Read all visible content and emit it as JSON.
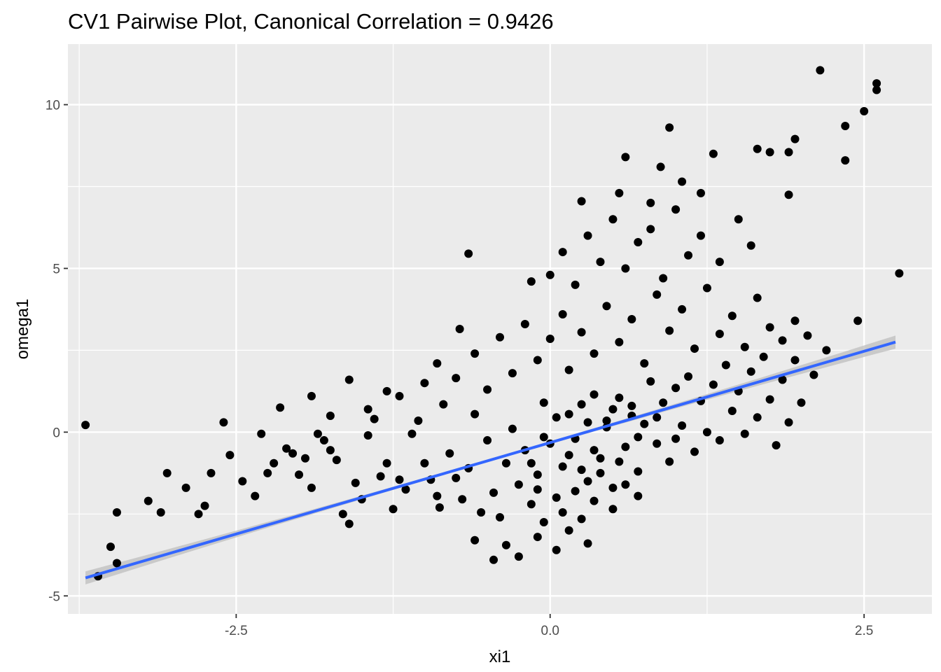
{
  "chart_data": {
    "type": "scatter",
    "title": "CV1 Pairwise Plot, Canonical Correlation = 0.9426",
    "xlabel": "xi1",
    "ylabel": "omega1",
    "xlim": [
      -3.84,
      3.04
    ],
    "ylim": [
      -5.55,
      11.85
    ],
    "x_ticks": [
      -2.5,
      0.0,
      2.5
    ],
    "x_tick_labels": [
      "-2.5",
      "0.0",
      "2.5"
    ],
    "y_ticks": [
      -5,
      0,
      5,
      10
    ],
    "y_tick_labels": [
      "-5",
      "0",
      "5",
      "10"
    ],
    "grid": true,
    "point_color": "#000000",
    "panel_background": "#EBEBEB",
    "regression_line": {
      "method": "linear",
      "color": "#3366FF",
      "x": [
        -3.7,
        2.75
      ],
      "y": [
        -4.45,
        2.75
      ],
      "se_band_color": "#BEBEBE",
      "se_halfwidth_ends": 0.2,
      "se_halfwidth_center": 0.04
    },
    "points": [
      [
        -3.7,
        0.22
      ],
      [
        -3.6,
        -4.4
      ],
      [
        -3.45,
        -2.45
      ],
      [
        -3.45,
        -4.0
      ],
      [
        -3.5,
        -3.5
      ],
      [
        -3.2,
        -2.1
      ],
      [
        -3.1,
        -2.45
      ],
      [
        -3.05,
        -1.25
      ],
      [
        -2.9,
        -1.7
      ],
      [
        -2.8,
        -2.5
      ],
      [
        -2.75,
        -2.25
      ],
      [
        -2.7,
        -1.25
      ],
      [
        -2.55,
        -0.7
      ],
      [
        -2.45,
        -1.5
      ],
      [
        -2.35,
        -1.95
      ],
      [
        -2.25,
        -1.25
      ],
      [
        -2.2,
        -0.95
      ],
      [
        -2.15,
        0.75
      ],
      [
        -2.1,
        -0.5
      ],
      [
        -2.05,
        -0.65
      ],
      [
        -2.0,
        -1.3
      ],
      [
        -1.95,
        -0.8
      ],
      [
        -1.9,
        -1.7
      ],
      [
        -1.8,
        -0.25
      ],
      [
        -1.75,
        -0.55
      ],
      [
        -1.7,
        -0.85
      ],
      [
        -1.65,
        -2.5
      ],
      [
        -1.6,
        -2.8
      ],
      [
        -1.55,
        -1.55
      ],
      [
        -1.5,
        -2.05
      ],
      [
        -1.45,
        -0.1
      ],
      [
        -1.4,
        0.4
      ],
      [
        -1.35,
        -1.35
      ],
      [
        -1.3,
        -0.95
      ],
      [
        -1.25,
        -2.35
      ],
      [
        -1.2,
        -1.45
      ],
      [
        -1.15,
        -1.75
      ],
      [
        -1.1,
        -0.05
      ],
      [
        -1.05,
        0.35
      ],
      [
        -1.0,
        -0.95
      ],
      [
        -0.95,
        -1.45
      ],
      [
        -0.9,
        -1.95
      ],
      [
        -0.88,
        -2.3
      ],
      [
        -0.85,
        0.85
      ],
      [
        -0.8,
        -0.65
      ],
      [
        -0.75,
        -1.4
      ],
      [
        -0.72,
        3.15
      ],
      [
        -0.7,
        -2.05
      ],
      [
        -0.65,
        -1.1
      ],
      [
        -0.6,
        0.55
      ],
      [
        -0.55,
        -2.45
      ],
      [
        -0.5,
        -0.25
      ],
      [
        -0.45,
        -1.85
      ],
      [
        -0.4,
        -2.6
      ],
      [
        -0.35,
        -0.95
      ],
      [
        -0.3,
        0.1
      ],
      [
        -0.25,
        -1.6
      ],
      [
        -0.2,
        -0.55
      ],
      [
        -0.15,
        -2.2
      ],
      [
        -0.1,
        -1.3
      ],
      [
        -0.05,
        0.9
      ],
      [
        0.0,
        -0.35
      ],
      [
        0.05,
        -2.0
      ],
      [
        0.1,
        -1.05
      ],
      [
        0.15,
        0.55
      ],
      [
        0.2,
        -0.2
      ],
      [
        0.25,
        -2.65
      ],
      [
        0.3,
        -1.5
      ],
      [
        0.35,
        1.15
      ],
      [
        0.4,
        -0.8
      ],
      [
        0.45,
        0.35
      ],
      [
        0.5,
        -1.7
      ],
      [
        0.55,
        1.05
      ],
      [
        0.6,
        -0.45
      ],
      [
        0.65,
        0.8
      ],
      [
        0.7,
        -1.2
      ],
      [
        0.75,
        0.25
      ],
      [
        0.8,
        1.55
      ],
      [
        0.85,
        -0.35
      ],
      [
        0.9,
        0.9
      ],
      [
        0.95,
        -0.9
      ],
      [
        1.0,
        1.35
      ],
      [
        1.05,
        0.2
      ],
      [
        1.1,
        1.7
      ],
      [
        1.15,
        -0.6
      ],
      [
        1.2,
        0.95
      ],
      [
        1.25,
        0.0
      ],
      [
        1.3,
        1.45
      ],
      [
        1.35,
        -0.25
      ],
      [
        1.4,
        2.05
      ],
      [
        1.45,
        0.65
      ],
      [
        1.5,
        1.25
      ],
      [
        1.55,
        -0.05
      ],
      [
        1.6,
        1.85
      ],
      [
        1.65,
        0.45
      ],
      [
        1.7,
        2.3
      ],
      [
        1.75,
        1.0
      ],
      [
        1.8,
        -0.4
      ],
      [
        1.85,
        1.6
      ],
      [
        1.9,
        0.3
      ],
      [
        1.95,
        2.2
      ],
      [
        2.0,
        0.9
      ],
      [
        2.1,
        1.75
      ],
      [
        2.2,
        2.5
      ],
      [
        -1.2,
        1.1
      ],
      [
        -1.0,
        1.5
      ],
      [
        -0.9,
        2.1
      ],
      [
        -0.75,
        1.65
      ],
      [
        -0.6,
        2.4
      ],
      [
        -0.5,
        1.3
      ],
      [
        -0.4,
        2.9
      ],
      [
        -0.3,
        1.8
      ],
      [
        -0.2,
        3.3
      ],
      [
        -0.1,
        2.2
      ],
      [
        0.0,
        2.85
      ],
      [
        0.1,
        3.6
      ],
      [
        0.15,
        1.9
      ],
      [
        0.25,
        3.05
      ],
      [
        0.35,
        2.4
      ],
      [
        0.45,
        3.85
      ],
      [
        0.55,
        2.75
      ],
      [
        0.65,
        3.45
      ],
      [
        0.75,
        2.1
      ],
      [
        0.85,
        4.2
      ],
      [
        0.95,
        3.1
      ],
      [
        1.05,
        3.75
      ],
      [
        1.15,
        2.55
      ],
      [
        1.25,
        4.4
      ],
      [
        1.35,
        3.0
      ],
      [
        1.45,
        3.55
      ],
      [
        1.55,
        2.6
      ],
      [
        1.65,
        4.1
      ],
      [
        1.75,
        3.2
      ],
      [
        1.85,
        2.8
      ],
      [
        1.95,
        3.4
      ],
      [
        2.05,
        2.95
      ],
      [
        0.0,
        4.8
      ],
      [
        0.1,
        5.5
      ],
      [
        0.2,
        4.5
      ],
      [
        0.3,
        6.0
      ],
      [
        0.4,
        5.2
      ],
      [
        0.5,
        6.5
      ],
      [
        0.6,
        5.0
      ],
      [
        0.7,
        5.8
      ],
      [
        0.8,
        6.2
      ],
      [
        0.9,
        4.7
      ],
      [
        1.0,
        6.8
      ],
      [
        1.1,
        5.4
      ],
      [
        1.2,
        6.0
      ],
      [
        1.35,
        5.2
      ],
      [
        1.5,
        6.5
      ],
      [
        1.6,
        5.7
      ],
      [
        0.55,
        7.3
      ],
      [
        0.6,
        8.4
      ],
      [
        0.8,
        7.0
      ],
      [
        0.88,
        8.1
      ],
      [
        0.95,
        9.3
      ],
      [
        1.05,
        7.65
      ],
      [
        1.2,
        7.3
      ],
      [
        1.3,
        8.5
      ],
      [
        1.65,
        8.65
      ],
      [
        1.75,
        8.55
      ],
      [
        1.9,
        8.55
      ],
      [
        1.95,
        8.95
      ],
      [
        1.9,
        7.25
      ],
      [
        2.15,
        11.05
      ],
      [
        2.35,
        9.35
      ],
      [
        2.35,
        8.3
      ],
      [
        2.5,
        9.8
      ],
      [
        2.6,
        10.65
      ],
      [
        2.6,
        10.45
      ],
      [
        2.78,
        4.85
      ],
      [
        2.45,
        3.4
      ],
      [
        -0.65,
        5.45
      ],
      [
        -0.15,
        4.6
      ],
      [
        0.25,
        7.05
      ],
      [
        -1.9,
        1.1
      ],
      [
        -1.6,
        1.6
      ],
      [
        -1.45,
        0.7
      ],
      [
        -1.3,
        1.25
      ],
      [
        -1.85,
        -0.05
      ],
      [
        -2.3,
        -0.05
      ],
      [
        -2.6,
        0.3
      ],
      [
        -1.75,
        0.5
      ],
      [
        -0.1,
        -3.2
      ],
      [
        0.05,
        -3.6
      ],
      [
        -0.25,
        -3.8
      ],
      [
        -0.45,
        -3.9
      ],
      [
        -0.6,
        -3.3
      ],
      [
        0.15,
        -3.0
      ],
      [
        0.3,
        -3.4
      ],
      [
        -0.35,
        -3.45
      ],
      [
        -0.05,
        -2.75
      ],
      [
        0.1,
        -2.45
      ],
      [
        0.2,
        -1.8
      ],
      [
        0.35,
        -2.1
      ],
      [
        0.5,
        -2.35
      ],
      [
        0.4,
        -1.25
      ],
      [
        0.6,
        -1.6
      ],
      [
        0.7,
        -1.95
      ],
      [
        -0.15,
        -0.95
      ],
      [
        -0.05,
        -0.15
      ],
      [
        0.05,
        0.45
      ],
      [
        0.25,
        0.85
      ],
      [
        0.35,
        -0.55
      ],
      [
        0.45,
        0.15
      ],
      [
        0.55,
        -0.9
      ],
      [
        0.65,
        0.5
      ],
      [
        0.15,
        -0.7
      ],
      [
        0.3,
        0.3
      ],
      [
        0.5,
        0.7
      ],
      [
        0.7,
        -0.15
      ],
      [
        0.85,
        0.45
      ],
      [
        1.0,
        -0.2
      ],
      [
        0.25,
        -1.15
      ],
      [
        -0.1,
        -1.75
      ]
    ]
  }
}
